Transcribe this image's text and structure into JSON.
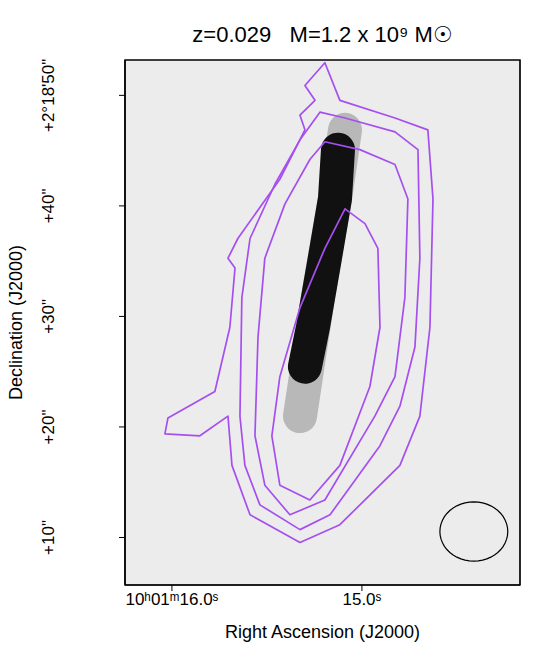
{
  "chart_data": {
    "type": "contour",
    "title": "z=0.029   M=1.2 x 10⁹ M☉",
    "xlabel": "Right Ascension (J2000)",
    "ylabel": "Declination (J2000)",
    "xlim": [
      16.247,
      14.168
    ],
    "ylim": [
      5.7,
      53.2
    ],
    "xticks": [
      {
        "value": 16.0,
        "label": "10ʰ01ᵐ16.0ˢ"
      },
      {
        "value": 15.0,
        "label": "15.0ˢ"
      }
    ],
    "yticks": [
      {
        "value": 50,
        "label": "+2°18'50\""
      },
      {
        "value": 40,
        "label": "+40\""
      },
      {
        "value": 30,
        "label": "+30\""
      },
      {
        "value": 20,
        "label": "+20\""
      },
      {
        "value": 10,
        "label": "+10\""
      }
    ],
    "grid": false,
    "series": [
      {
        "type": "line",
        "line_style": "broad",
        "color": "#b8b8b8",
        "x": [
          15.089,
          15.142,
          15.232,
          15.326
        ],
        "values": [
          46.88,
          40.63,
          31.7,
          20.98
        ]
      },
      {
        "type": "line",
        "line_style": "broad",
        "color": "#111111",
        "x": [
          15.126,
          15.142,
          15.195,
          15.258,
          15.3
        ],
        "values": [
          45.09,
          40.63,
          35.27,
          29.02,
          25.45
        ]
      },
      {
        "type": "contour",
        "line_style": "solid",
        "color": "#a64ff0",
        "x": [
          15.195,
          15.116,
          14.826,
          14.653,
          14.626,
          14.642,
          14.695,
          14.8,
          15.116,
          15.326,
          15.589,
          15.684,
          15.705,
          15.853,
          16.037,
          16.021,
          15.774,
          15.695,
          15.668,
          15.705,
          15.653,
          15.432,
          15.3,
          15.326,
          15.247,
          15.3
        ],
        "values": [
          52.95,
          49.55,
          47.95,
          46.88,
          40.63,
          29.02,
          20.98,
          16.52,
          11.16,
          9.55,
          12.05,
          16.52,
          20.98,
          19.2,
          19.38,
          20.8,
          23.21,
          29.02,
          34.38,
          35.27,
          37.05,
          42.41,
          46.88,
          48.21,
          49.55,
          50.89
        ]
      },
      {
        "type": "contour",
        "line_style": "solid",
        "color": "#a64ff0",
        "x": [
          15.221,
          15.089,
          14.826,
          14.705,
          14.695,
          14.721,
          14.8,
          14.905,
          15.168,
          15.326,
          15.537,
          15.616,
          15.642,
          15.632,
          15.589,
          15.458,
          15.326
        ],
        "values": [
          48.48,
          47.95,
          46.7,
          45.09,
          35.27,
          27.23,
          21.88,
          18.3,
          12.05,
          10.71,
          12.95,
          16.52,
          20.98,
          31.7,
          37.05,
          41.96,
          45.98
        ]
      },
      {
        "type": "contour",
        "line_style": "solid",
        "color": "#a64ff0",
        "x": [
          15.195,
          15.011,
          14.826,
          14.758,
          14.774,
          14.826,
          14.932,
          15.195,
          15.379,
          15.511,
          15.563,
          15.547,
          15.511,
          15.405,
          15.274
        ],
        "values": [
          45.8,
          45.09,
          43.75,
          40.63,
          31.7,
          24.55,
          20.98,
          13.39,
          12.05,
          14.73,
          19.2,
          28.13,
          35.27,
          40.18,
          44.2
        ]
      },
      {
        "type": "contour",
        "line_style": "solid",
        "color": "#a64ff0",
        "x": [
          15.089,
          14.984,
          14.916,
          14.905,
          14.958,
          15.116,
          15.274,
          15.432,
          15.474,
          15.432,
          15.326,
          15.195
        ],
        "values": [
          39.73,
          38.39,
          36.16,
          29.02,
          23.66,
          16.52,
          13.39,
          14.73,
          19.2,
          24.55,
          30.8,
          36.16
        ]
      }
    ],
    "beam": {
      "x": 14.411,
      "y": 10.54,
      "radius": 2.68,
      "color": "#000000"
    }
  }
}
